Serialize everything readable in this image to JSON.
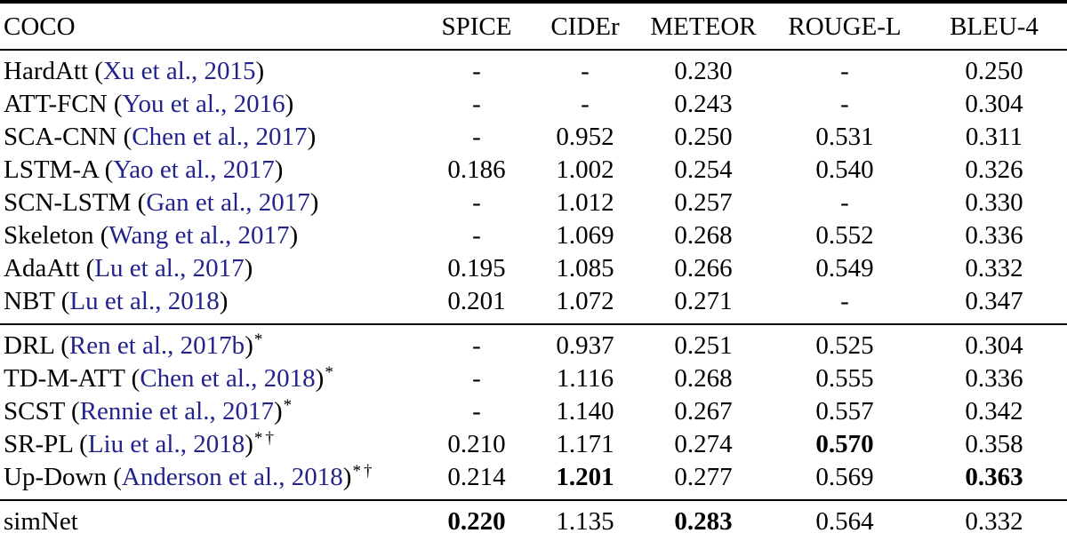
{
  "table": {
    "corner_label": "COCO",
    "columns": [
      "SPICE",
      "CIDEr",
      "METEOR",
      "ROUGE-L",
      "BLEU-4"
    ],
    "punctuation": {
      "open_paren": "(",
      "close_paren": ")"
    },
    "colors": {
      "citation_link": "#23238c",
      "text": "#000000",
      "rule": "#000000",
      "background": "#ffffff"
    },
    "groups": [
      {
        "name": "cross-entropy-models",
        "rows": [
          {
            "model": "HardAtt",
            "cite": "Xu et al., 2015",
            "sup": "",
            "values": [
              "-",
              "-",
              "0.230",
              "-",
              "0.250"
            ],
            "bold": [
              false,
              false,
              false,
              false,
              false
            ]
          },
          {
            "model": "ATT-FCN",
            "cite": "You et al., 2016",
            "sup": "",
            "values": [
              "-",
              "-",
              "0.243",
              "-",
              "0.304"
            ],
            "bold": [
              false,
              false,
              false,
              false,
              false
            ]
          },
          {
            "model": "SCA-CNN",
            "cite": "Chen et al., 2017",
            "sup": "",
            "values": [
              "-",
              "0.952",
              "0.250",
              "0.531",
              "0.311"
            ],
            "bold": [
              false,
              false,
              false,
              false,
              false
            ]
          },
          {
            "model": "LSTM-A",
            "cite": "Yao et al., 2017",
            "sup": "",
            "values": [
              "0.186",
              "1.002",
              "0.254",
              "0.540",
              "0.326"
            ],
            "bold": [
              false,
              false,
              false,
              false,
              false
            ]
          },
          {
            "model": "SCN-LSTM",
            "cite": "Gan et al., 2017",
            "sup": "",
            "values": [
              "-",
              "1.012",
              "0.257",
              "-",
              "0.330"
            ],
            "bold": [
              false,
              false,
              false,
              false,
              false
            ]
          },
          {
            "model": "Skeleton",
            "cite": "Wang et al., 2017",
            "sup": "",
            "values": [
              "-",
              "1.069",
              "0.268",
              "0.552",
              "0.336"
            ],
            "bold": [
              false,
              false,
              false,
              false,
              false
            ]
          },
          {
            "model": "AdaAtt",
            "cite": "Lu et al., 2017",
            "sup": "",
            "values": [
              "0.195",
              "1.085",
              "0.266",
              "0.549",
              "0.332"
            ],
            "bold": [
              false,
              false,
              false,
              false,
              false
            ]
          },
          {
            "model": "NBT",
            "cite": "Lu et al., 2018",
            "sup": "",
            "values": [
              "0.201",
              "1.072",
              "0.271",
              "-",
              "0.347"
            ],
            "bold": [
              false,
              false,
              false,
              false,
              false
            ]
          }
        ]
      },
      {
        "name": "rl-optimized-models",
        "rows": [
          {
            "model": "DRL",
            "cite": "Ren et al., 2017b",
            "sup": "*",
            "values": [
              "-",
              "0.937",
              "0.251",
              "0.525",
              "0.304"
            ],
            "bold": [
              false,
              false,
              false,
              false,
              false
            ]
          },
          {
            "model": "TD-M-ATT",
            "cite": "Chen et al., 2018",
            "sup": "*",
            "values": [
              "-",
              "1.116",
              "0.268",
              "0.555",
              "0.336"
            ],
            "bold": [
              false,
              false,
              false,
              false,
              false
            ]
          },
          {
            "model": "SCST",
            "cite": "Rennie et al., 2017",
            "sup": "*",
            "values": [
              "-",
              "1.140",
              "0.267",
              "0.557",
              "0.342"
            ],
            "bold": [
              false,
              false,
              false,
              false,
              false
            ]
          },
          {
            "model": "SR-PL",
            "cite": "Liu et al., 2018",
            "sup": "*†",
            "values": [
              "0.210",
              "1.171",
              "0.274",
              "0.570",
              "0.358"
            ],
            "bold": [
              false,
              false,
              false,
              true,
              false
            ]
          },
          {
            "model": "Up-Down",
            "cite": "Anderson et al., 2018",
            "sup": "*†",
            "values": [
              "0.214",
              "1.201",
              "0.277",
              "0.569",
              "0.363"
            ],
            "bold": [
              false,
              true,
              false,
              false,
              true
            ]
          }
        ]
      },
      {
        "name": "proposed-model",
        "rows": [
          {
            "model": "simNet",
            "cite": null,
            "sup": "",
            "values": [
              "0.220",
              "1.135",
              "0.283",
              "0.564",
              "0.332"
            ],
            "bold": [
              true,
              false,
              true,
              false,
              false
            ]
          }
        ]
      }
    ]
  }
}
